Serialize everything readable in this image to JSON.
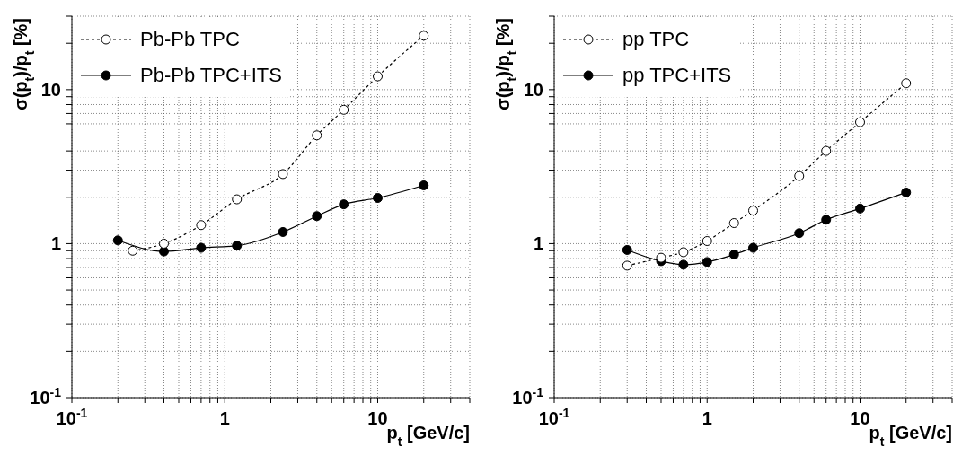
{
  "chart_data": [
    {
      "type": "line",
      "xlabel": "p$_{t}$ [GeV/c]",
      "ylabel": "σ(p$_{t}$)/p$_{t}$ [%]",
      "log": "xy",
      "grid": true,
      "legend": "top left",
      "marker": "circle",
      "xlim": [
        0.1,
        40
      ],
      "ylim": [
        0.1,
        30
      ],
      "xticks": [
        {
          "value": 0.1,
          "label": "10$^{-1}$"
        },
        {
          "value": 0.2,
          "label": null
        },
        {
          "value": 0.3,
          "label": null
        },
        {
          "value": 0.4,
          "label": null
        },
        {
          "value": 0.5,
          "label": null
        },
        {
          "value": 0.6,
          "label": null
        },
        {
          "value": 0.7,
          "label": null
        },
        {
          "value": 0.8,
          "label": null
        },
        {
          "value": 0.9,
          "label": null
        },
        {
          "value": 1,
          "label": "1"
        },
        {
          "value": 2,
          "label": null
        },
        {
          "value": 3,
          "label": null
        },
        {
          "value": 4,
          "label": null
        },
        {
          "value": 5,
          "label": null
        },
        {
          "value": 6,
          "label": null
        },
        {
          "value": 7,
          "label": null
        },
        {
          "value": 8,
          "label": null
        },
        {
          "value": 9,
          "label": null
        },
        {
          "value": 10,
          "label": "10"
        },
        {
          "value": 20,
          "label": null
        },
        {
          "value": 30,
          "label": null
        },
        {
          "value": 40,
          "label": null
        }
      ],
      "yticks": [
        {
          "value": 0.1,
          "label": "10$^{-1}$"
        },
        {
          "value": 0.2,
          "label": null
        },
        {
          "value": 0.3,
          "label": null
        },
        {
          "value": 0.4,
          "label": null
        },
        {
          "value": 0.5,
          "label": null
        },
        {
          "value": 0.6,
          "label": null
        },
        {
          "value": 0.7,
          "label": null
        },
        {
          "value": 0.8,
          "label": null
        },
        {
          "value": 0.9,
          "label": null
        },
        {
          "value": 1,
          "label": "1"
        },
        {
          "value": 2,
          "label": null
        },
        {
          "value": 3,
          "label": null
        },
        {
          "value": 4,
          "label": null
        },
        {
          "value": 5,
          "label": null
        },
        {
          "value": 6,
          "label": null
        },
        {
          "value": 7,
          "label": null
        },
        {
          "value": 8,
          "label": null
        },
        {
          "value": 9,
          "label": null
        },
        {
          "value": 10,
          "label": "10"
        },
        {
          "value": 20,
          "label": null
        },
        {
          "value": 30,
          "label": null
        }
      ],
      "series": [
        {
          "name": "Pb-Pb TPC",
          "color": "#000000",
          "line_style": "dashed",
          "x": [
            0.25,
            0.4,
            0.7,
            1.2,
            2.4,
            4,
            6,
            10,
            20
          ],
          "values": [
            0.9,
            1.0,
            1.32,
            1.94,
            2.83,
            5.05,
            7.4,
            12.2,
            22.4
          ]
        },
        {
          "name": "Pb-Pb TPC+ITS",
          "color": "#000000",
          "line_style": "solid",
          "x": [
            0.2,
            0.4,
            0.7,
            1.2,
            2.4,
            4,
            6,
            10,
            20
          ],
          "values": [
            1.05,
            0.89,
            0.94,
            0.97,
            1.19,
            1.51,
            1.8,
            1.98,
            2.39
          ]
        }
      ]
    },
    {
      "type": "line",
      "xlabel": "p$_{t}$ [GeV/c]",
      "ylabel": "σ(p$_{t}$)/p$_{t}$ [%]",
      "log": "xy",
      "grid": true,
      "legend": "top left",
      "marker": "circle",
      "xlim": [
        0.1,
        40
      ],
      "ylim": [
        0.1,
        30
      ],
      "xticks": [
        {
          "value": 0.1,
          "label": "10$^{-1}$"
        },
        {
          "value": 0.2,
          "label": null
        },
        {
          "value": 0.3,
          "label": null
        },
        {
          "value": 0.4,
          "label": null
        },
        {
          "value": 0.5,
          "label": null
        },
        {
          "value": 0.6,
          "label": null
        },
        {
          "value": 0.7,
          "label": null
        },
        {
          "value": 0.8,
          "label": null
        },
        {
          "value": 0.9,
          "label": null
        },
        {
          "value": 1,
          "label": "1"
        },
        {
          "value": 2,
          "label": null
        },
        {
          "value": 3,
          "label": null
        },
        {
          "value": 4,
          "label": null
        },
        {
          "value": 5,
          "label": null
        },
        {
          "value": 6,
          "label": null
        },
        {
          "value": 7,
          "label": null
        },
        {
          "value": 8,
          "label": null
        },
        {
          "value": 9,
          "label": null
        },
        {
          "value": 10,
          "label": "10"
        },
        {
          "value": 20,
          "label": null
        },
        {
          "value": 30,
          "label": null
        },
        {
          "value": 40,
          "label": null
        }
      ],
      "yticks": [
        {
          "value": 0.1,
          "label": "10$^{-1}$"
        },
        {
          "value": 0.2,
          "label": null
        },
        {
          "value": 0.3,
          "label": null
        },
        {
          "value": 0.4,
          "label": null
        },
        {
          "value": 0.5,
          "label": null
        },
        {
          "value": 0.6,
          "label": null
        },
        {
          "value": 0.7,
          "label": null
        },
        {
          "value": 0.8,
          "label": null
        },
        {
          "value": 0.9,
          "label": null
        },
        {
          "value": 1,
          "label": "1"
        },
        {
          "value": 2,
          "label": null
        },
        {
          "value": 3,
          "label": null
        },
        {
          "value": 4,
          "label": null
        },
        {
          "value": 5,
          "label": null
        },
        {
          "value": 6,
          "label": null
        },
        {
          "value": 7,
          "label": null
        },
        {
          "value": 8,
          "label": null
        },
        {
          "value": 9,
          "label": null
        },
        {
          "value": 10,
          "label": "10"
        },
        {
          "value": 20,
          "label": null
        },
        {
          "value": 30,
          "label": null
        }
      ],
      "series": [
        {
          "name": "pp TPC",
          "color": "#000000",
          "line_style": "dashed",
          "x": [
            0.3,
            0.5,
            0.7,
            1,
            1.5,
            2,
            4,
            6,
            10,
            20
          ],
          "values": [
            0.72,
            0.81,
            0.88,
            1.04,
            1.36,
            1.64,
            2.75,
            4.0,
            6.15,
            11.0
          ]
        },
        {
          "name": "pp TPC+ITS",
          "color": "#000000",
          "line_style": "solid",
          "x": [
            0.3,
            0.5,
            0.7,
            1,
            1.5,
            2,
            4,
            6,
            10,
            20
          ],
          "values": [
            0.91,
            0.77,
            0.73,
            0.76,
            0.85,
            0.94,
            1.17,
            1.43,
            1.69,
            2.15
          ]
        }
      ]
    }
  ]
}
